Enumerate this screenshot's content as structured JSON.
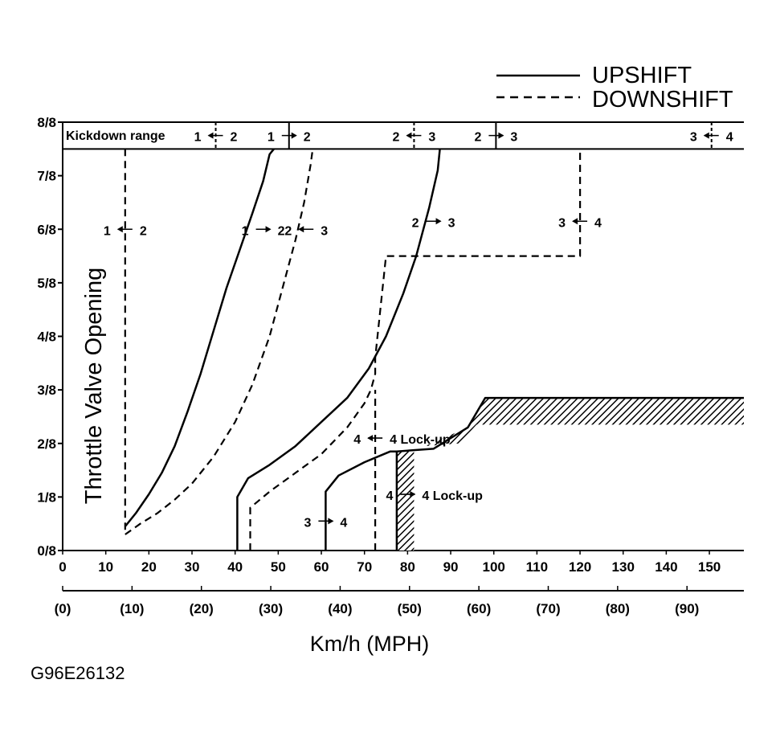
{
  "chart_data": {
    "type": "line",
    "xlabel": "Km/h (MPH)",
    "ylabel": "Throttle Valve Opening",
    "xlim": [
      0,
      158
    ],
    "ylim": [
      0,
      8
    ],
    "x_ticks": [
      "0",
      "10",
      "20",
      "30",
      "40",
      "50",
      "60",
      "70",
      "80",
      "90",
      "100",
      "110",
      "120",
      "130",
      "140",
      "150"
    ],
    "x_ticks_mph": [
      "(0)",
      "(10)",
      "(20)",
      "(30)",
      "(40)",
      "(50)",
      "(60)",
      "(70)",
      "(80)",
      "(90)"
    ],
    "y_ticks": [
      "0/8",
      "1/8",
      "2/8",
      "3/8",
      "4/8",
      "5/8",
      "6/8",
      "7/8",
      "8/8"
    ],
    "legend": {
      "upshift": "UPSHIFT",
      "downshift": "DOWNSHIFT",
      "placement": "top-right"
    },
    "kickdown_label": "Kickdown range",
    "kickdown_shifts": [
      {
        "x": 35.5,
        "from": "1",
        "to": "2",
        "type": "downshift"
      },
      {
        "x": 52.5,
        "from": "1",
        "to": "2",
        "type": "upshift"
      },
      {
        "x": 81.5,
        "from": "2",
        "to": "3",
        "type": "downshift"
      },
      {
        "x": 100.5,
        "from": "2",
        "to": "3",
        "type": "upshift"
      },
      {
        "x": 150.5,
        "from": "3",
        "to": "4",
        "type": "downshift"
      }
    ],
    "series": [
      {
        "name": "1 → 2",
        "type": "upshift",
        "points": [
          [
            14.5,
            0.45
          ],
          [
            17,
            0.7
          ],
          [
            20,
            1.05
          ],
          [
            23,
            1.45
          ],
          [
            26,
            1.95
          ],
          [
            29,
            2.6
          ],
          [
            32,
            3.3
          ],
          [
            35,
            4.1
          ],
          [
            38,
            4.9
          ],
          [
            41,
            5.6
          ],
          [
            44,
            6.3
          ],
          [
            46.5,
            6.9
          ],
          [
            48,
            7.4
          ],
          [
            49,
            7.5
          ]
        ]
      },
      {
        "name": "2 → 1",
        "type": "downshift",
        "points": [
          [
            14.5,
            7.5
          ],
          [
            14.5,
            0.3
          ]
        ]
      },
      {
        "name": "2 → 1",
        "type": "downshift",
        "points": [
          [
            14.5,
            0.3
          ],
          [
            18,
            0.5
          ],
          [
            22,
            0.7
          ],
          [
            26,
            0.95
          ],
          [
            30,
            1.25
          ],
          [
            35,
            1.75
          ],
          [
            40,
            2.4
          ],
          [
            44,
            3.1
          ],
          [
            48,
            4.0
          ],
          [
            51,
            4.9
          ],
          [
            54,
            5.8
          ],
          [
            56,
            6.5
          ],
          [
            57.5,
            7.2
          ],
          [
            58,
            7.5
          ]
        ]
      },
      {
        "name": "2 → 3",
        "type": "upshift",
        "points": [
          [
            40.5,
            0
          ],
          [
            40.5,
            1.0
          ],
          [
            43,
            1.35
          ],
          [
            48,
            1.6
          ],
          [
            54,
            1.95
          ],
          [
            60,
            2.4
          ],
          [
            66,
            2.85
          ],
          [
            71,
            3.4
          ],
          [
            75,
            4.0
          ],
          [
            79,
            4.8
          ],
          [
            82,
            5.5
          ],
          [
            85,
            6.4
          ],
          [
            87,
            7.1
          ],
          [
            87.5,
            7.5
          ]
        ]
      },
      {
        "name": "3 → 2",
        "type": "downshift",
        "points": [
          [
            43.5,
            0
          ],
          [
            43.5,
            0.8
          ],
          [
            48,
            1.1
          ],
          [
            54,
            1.45
          ],
          [
            60,
            1.8
          ],
          [
            66,
            2.3
          ],
          [
            70,
            2.75
          ],
          [
            71.5,
            3.0
          ],
          [
            72.5,
            3.3
          ],
          [
            72.5,
            3.6
          ],
          [
            75,
            5.5
          ],
          [
            120,
            5.5
          ],
          [
            120,
            7.5
          ]
        ]
      },
      {
        "name": "3 → 4",
        "type": "upshift",
        "points": [
          [
            61,
            0
          ],
          [
            61,
            1.1
          ],
          [
            64,
            1.4
          ],
          [
            70,
            1.65
          ],
          [
            76,
            1.85
          ],
          [
            77.5,
            1.85
          ]
        ]
      },
      {
        "name": "4 → 3",
        "type": "downshift",
        "points": [
          [
            72.5,
            0
          ],
          [
            72.5,
            3.0
          ]
        ]
      },
      {
        "name": "4 Lock-up",
        "type": "upshift",
        "points": [
          [
            77.5,
            0
          ],
          [
            77.5,
            1.85
          ],
          [
            86,
            1.9
          ],
          [
            94,
            2.3
          ],
          [
            98,
            2.85
          ],
          [
            158,
            2.85
          ]
        ]
      }
    ],
    "annotations": [
      {
        "text": "1",
        "arrow": "left",
        "text2": "2",
        "x": 14.5,
        "y": 6.0
      },
      {
        "text": "1",
        "arrow": "right",
        "text2": "2",
        "x": 46.5,
        "y": 6.0
      },
      {
        "text": "2",
        "arrow": "left",
        "text2": "3",
        "x": 56.5,
        "y": 6.0
      },
      {
        "text": "2",
        "arrow": "right",
        "text2": "3",
        "x": 86.0,
        "y": 6.15
      },
      {
        "text": "3",
        "arrow": "left",
        "text2": "4",
        "x": 120.0,
        "y": 6.15
      },
      {
        "text": "4",
        "arrow": "left",
        "text2": "4 Lock-up",
        "x": 72.5,
        "y": 2.1
      },
      {
        "text": "4",
        "arrow": "right",
        "text2": "4 Lock-up",
        "x": 80.0,
        "y": 1.05
      },
      {
        "text": "3",
        "arrow": "right",
        "text2": "4",
        "x": 61.0,
        "y": 0.55
      }
    ],
    "figure_code": "G96E26132",
    "grid": false
  }
}
